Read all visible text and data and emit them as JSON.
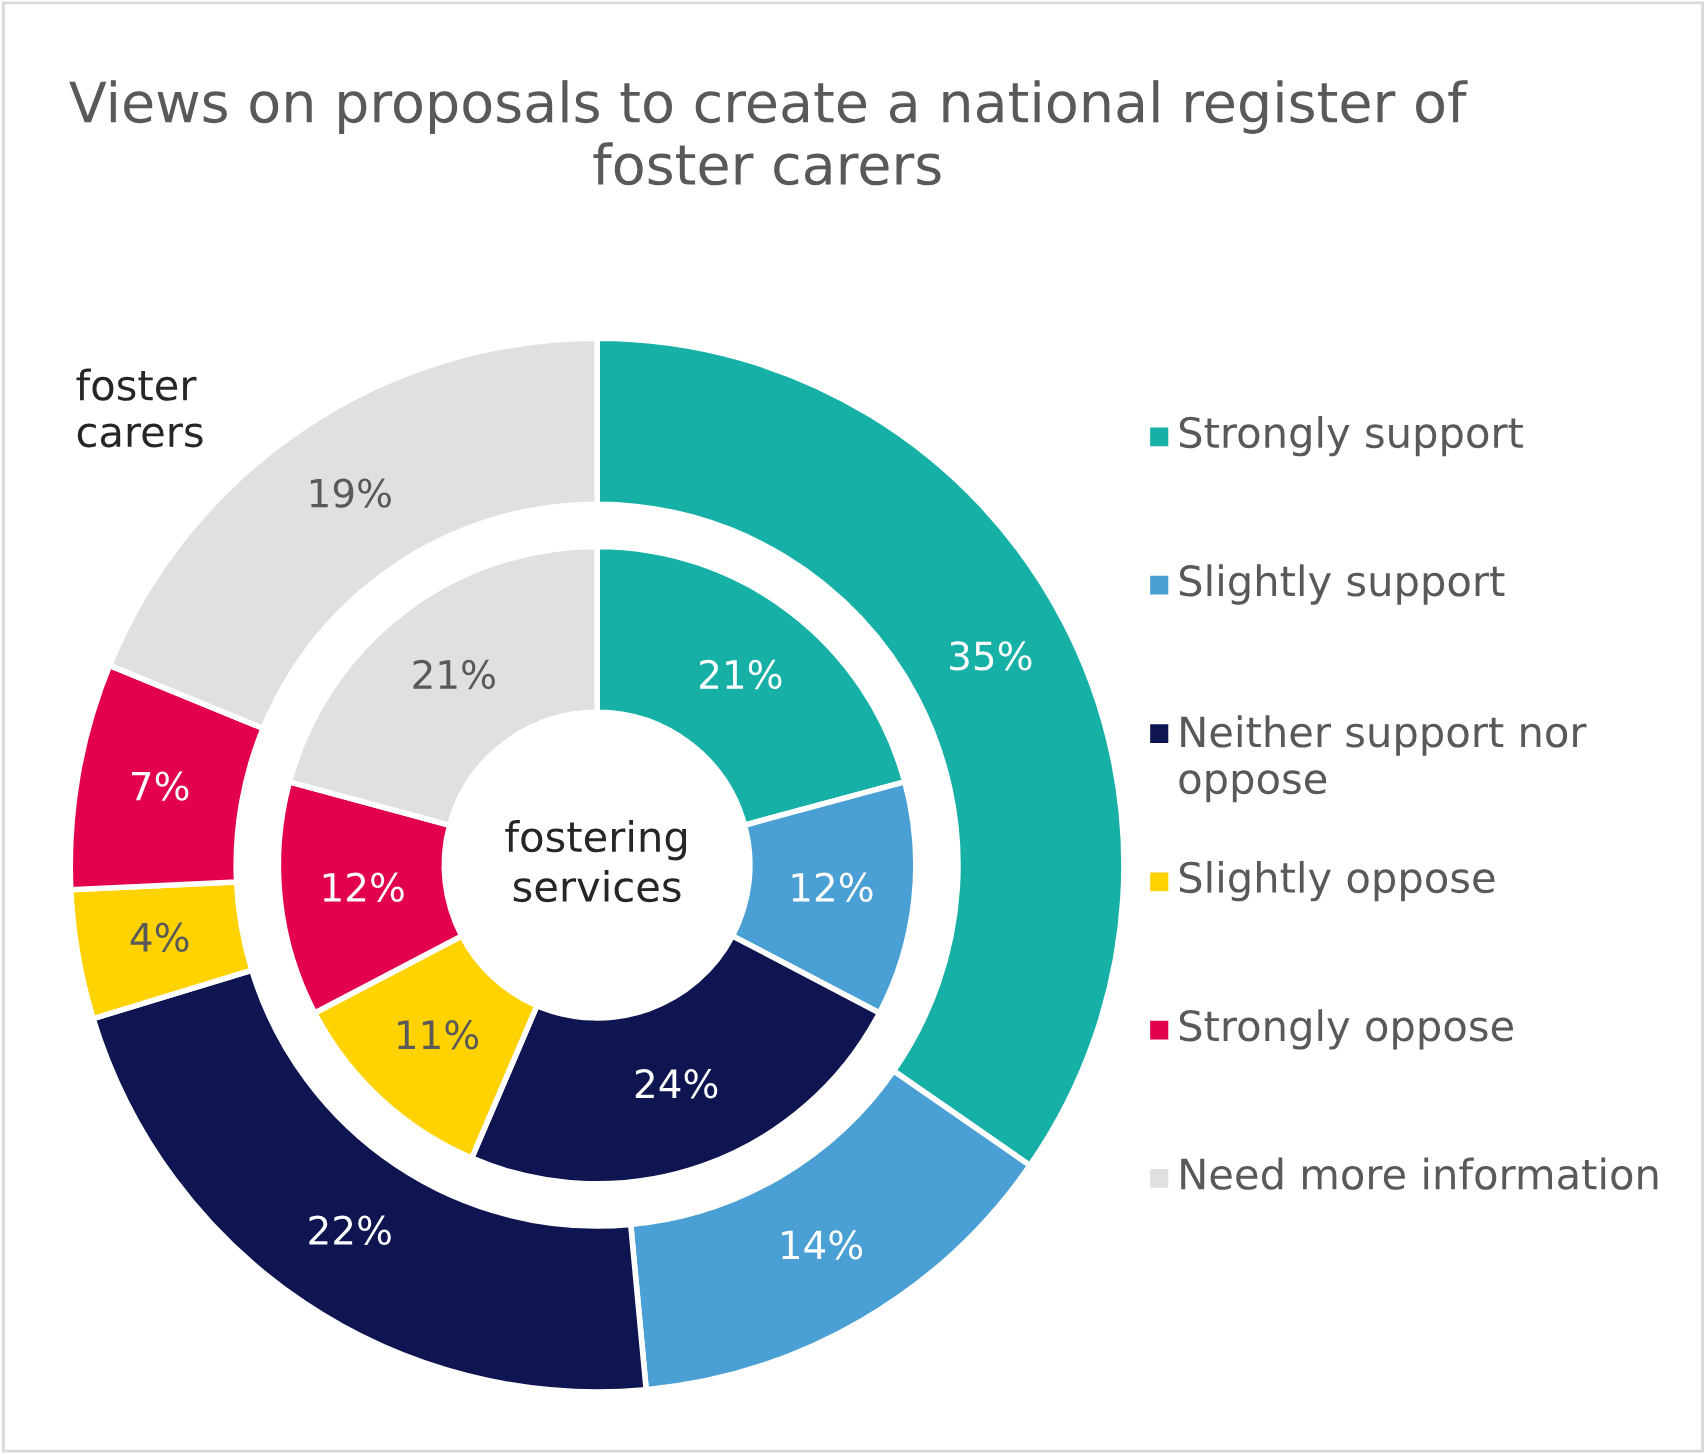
{
  "chart_data": {
    "type": "donut",
    "title": "Views on proposals to create a national register of foster carers",
    "categories": [
      "Strongly support",
      "Slightly support",
      "Neither support nor oppose",
      "Slightly oppose",
      "Strongly oppose",
      "Need more information"
    ],
    "colors": [
      "#17b0a7",
      "#4a9fd4",
      "#0f1550",
      "#ffd200",
      "#e3004f",
      "#e0e0e0"
    ],
    "series": [
      {
        "name": "foster carers",
        "values": [
          35,
          14,
          22,
          4,
          7,
          19
        ],
        "value_labels": [
          "35%",
          "14%",
          "22%",
          "4%",
          "7%",
          "19%"
        ]
      },
      {
        "name": "fostering services",
        "values": [
          21,
          12,
          24,
          11,
          12,
          21
        ],
        "value_labels": [
          "21%",
          "12%",
          "24%",
          "11%",
          "12%",
          "21%"
        ]
      }
    ],
    "legend": "right"
  }
}
